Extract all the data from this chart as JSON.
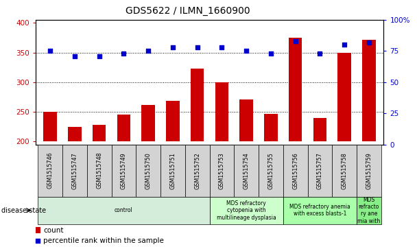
{
  "title": "GDS5622 / ILMN_1660900",
  "samples": [
    "GSM1515746",
    "GSM1515747",
    "GSM1515748",
    "GSM1515749",
    "GSM1515750",
    "GSM1515751",
    "GSM1515752",
    "GSM1515753",
    "GSM1515754",
    "GSM1515755",
    "GSM1515756",
    "GSM1515757",
    "GSM1515758",
    "GSM1515759"
  ],
  "counts": [
    250,
    225,
    228,
    245,
    261,
    268,
    323,
    300,
    271,
    246,
    375,
    240,
    349,
    371
  ],
  "percentiles": [
    75,
    71,
    71,
    73,
    75,
    78,
    78,
    78,
    75,
    73,
    83,
    73,
    80,
    82
  ],
  "ylim_left": [
    195,
    405
  ],
  "ylim_right": [
    0,
    100
  ],
  "yticks_left": [
    200,
    250,
    300,
    350,
    400
  ],
  "yticks_right": [
    0,
    25,
    50,
    75,
    100
  ],
  "bar_color": "#cc0000",
  "dot_color": "#0000cc",
  "bar_width": 0.55,
  "groups": [
    {
      "label": "control",
      "start": 0,
      "end": 7,
      "color": "#d4edda"
    },
    {
      "label": "MDS refractory\ncytopenia with\nmultilineage dysplasia",
      "start": 7,
      "end": 10,
      "color": "#ccffcc"
    },
    {
      "label": "MDS refractory anemia\nwith excess blasts-1",
      "start": 10,
      "end": 13,
      "color": "#aaffaa"
    },
    {
      "label": "MDS\nrefracto\nry ane\nmia with",
      "start": 13,
      "end": 14,
      "color": "#88ee88"
    }
  ],
  "disease_state_label": "disease state",
  "legend_count": "count",
  "legend_percentile": "percentile rank within the sample",
  "grid_color": "#555555",
  "tick_color_left": "#cc0000",
  "tick_color_right": "#0000cc"
}
